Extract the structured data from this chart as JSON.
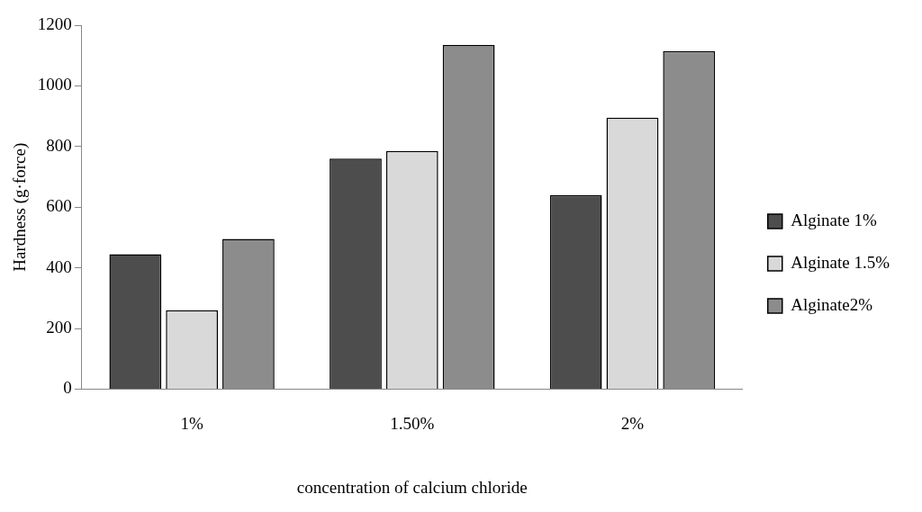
{
  "chart_data": {
    "type": "bar",
    "xlabel": "concentration of calcium chloride",
    "ylabel": "Hardness (g·force)",
    "categories": [
      "1%",
      "1.50%",
      "2%"
    ],
    "series": [
      {
        "name": "Alginate 1%",
        "color": "#4d4d4d",
        "values": [
          445,
          760,
          640
        ]
      },
      {
        "name": "Alginate 1.5%",
        "color": "#d9d9d9",
        "values": [
          260,
          785,
          895
        ]
      },
      {
        "name": "Alginate2%",
        "color": "#8c8c8c",
        "values": [
          495,
          1135,
          1115
        ]
      }
    ],
    "ylim": [
      0,
      1200
    ],
    "yticks": [
      0,
      200,
      400,
      600,
      800,
      1000,
      1200
    ],
    "grid": false,
    "legend": "right"
  }
}
